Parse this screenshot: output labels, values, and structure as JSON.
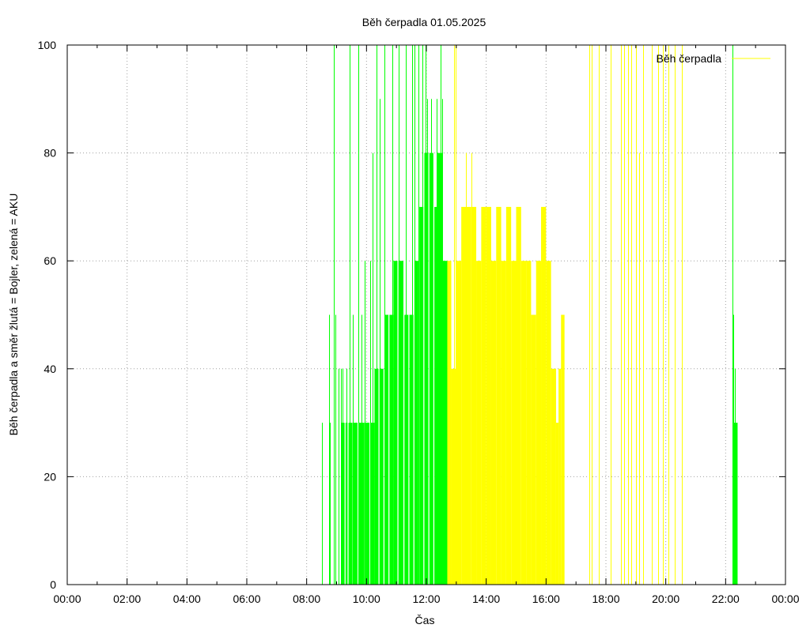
{
  "chart_data": {
    "type": "bar",
    "title": "Běh čerpadla 01.05.2025",
    "xlabel": "Čas",
    "ylabel": "Běh čerpadla a směr žlutá = Bojler, zelená = AKU",
    "xlim": [
      0,
      1440
    ],
    "ylim": [
      0,
      100
    ],
    "x_ticks": [
      "00:00",
      "02:00",
      "04:00",
      "06:00",
      "08:00",
      "10:00",
      "12:00",
      "14:00",
      "16:00",
      "18:00",
      "20:00",
      "22:00",
      "00:00"
    ],
    "y_ticks": [
      "0",
      "20",
      "40",
      "60",
      "80",
      "100"
    ],
    "grid": true,
    "legend_position": "top-right",
    "colors": {
      "green": "#00ff00",
      "yellow": "#ffff00",
      "legend_line": "#ffff00"
    },
    "legend": [
      {
        "label": "Běh čerpadla",
        "color": "#ffff00"
      }
    ],
    "x_unit": "minutes of day",
    "series": [
      {
        "name": "Běh čerpadla",
        "spikes": [
          {
            "x": 510,
            "y": 30,
            "c": "green"
          },
          {
            "x": 525,
            "y": 50,
            "c": "green"
          },
          {
            "x": 527,
            "y": 30,
            "c": "green"
          },
          {
            "x": 535,
            "y": 100,
            "c": "green"
          },
          {
            "x": 538,
            "y": 50,
            "c": "green"
          },
          {
            "x": 544,
            "y": 40,
            "c": "green"
          },
          {
            "x": 548,
            "y": 40,
            "c": "green"
          },
          {
            "x": 552,
            "y": 40,
            "c": "green"
          },
          {
            "x": 560,
            "y": 40,
            "c": "green"
          },
          {
            "x": 566,
            "y": 100,
            "c": "green"
          },
          {
            "x": 572,
            "y": 50,
            "c": "green"
          },
          {
            "x": 583,
            "y": 100,
            "c": "green"
          },
          {
            "x": 590,
            "y": 50,
            "c": "green"
          },
          {
            "x": 597,
            "y": 60,
            "c": "green"
          },
          {
            "x": 608,
            "y": 60,
            "c": "green"
          },
          {
            "x": 612,
            "y": 80,
            "c": "green"
          },
          {
            "x": 620,
            "y": 100,
            "c": "green"
          },
          {
            "x": 626,
            "y": 90,
            "c": "green"
          },
          {
            "x": 636,
            "y": 100,
            "c": "green"
          },
          {
            "x": 652,
            "y": 100,
            "c": "green"
          },
          {
            "x": 665,
            "y": 100,
            "c": "green"
          },
          {
            "x": 678,
            "y": 100,
            "c": "green"
          },
          {
            "x": 691,
            "y": 100,
            "c": "green"
          },
          {
            "x": 697,
            "y": 100,
            "c": "green"
          },
          {
            "x": 704,
            "y": 100,
            "c": "green"
          },
          {
            "x": 712,
            "y": 100,
            "c": "green"
          },
          {
            "x": 719,
            "y": 100,
            "c": "green"
          },
          {
            "x": 721,
            "y": 90,
            "c": "green"
          },
          {
            "x": 730,
            "y": 90,
            "c": "green"
          },
          {
            "x": 741,
            "y": 90,
            "c": "green"
          },
          {
            "x": 748,
            "y": 100,
            "c": "green"
          },
          {
            "x": 752,
            "y": 90,
            "c": "green"
          },
          {
            "x": 1334,
            "y": 100,
            "c": "green"
          },
          {
            "x": 1336,
            "y": 50,
            "c": "green"
          },
          {
            "x": 1338,
            "y": 40,
            "c": "green"
          },
          {
            "x": 775,
            "y": 100,
            "c": "yellow"
          },
          {
            "x": 779,
            "y": 100,
            "c": "yellow"
          },
          {
            "x": 800,
            "y": 80,
            "c": "yellow"
          },
          {
            "x": 810,
            "y": 80,
            "c": "yellow"
          },
          {
            "x": 1047,
            "y": 100,
            "c": "yellow"
          },
          {
            "x": 1052,
            "y": 100,
            "c": "yellow"
          },
          {
            "x": 1066,
            "y": 100,
            "c": "yellow"
          },
          {
            "x": 1090,
            "y": 100,
            "c": "yellow"
          },
          {
            "x": 1110,
            "y": 100,
            "c": "yellow"
          },
          {
            "x": 1116,
            "y": 100,
            "c": "yellow"
          },
          {
            "x": 1125,
            "y": 100,
            "c": "yellow"
          },
          {
            "x": 1130,
            "y": 100,
            "c": "yellow"
          },
          {
            "x": 1140,
            "y": 100,
            "c": "yellow"
          },
          {
            "x": 1147,
            "y": 80,
            "c": "yellow"
          },
          {
            "x": 1155,
            "y": 100,
            "c": "yellow"
          },
          {
            "x": 1172,
            "y": 100,
            "c": "yellow"
          },
          {
            "x": 1184,
            "y": 100,
            "c": "yellow"
          },
          {
            "x": 1194,
            "y": 100,
            "c": "yellow"
          },
          {
            "x": 1206,
            "y": 100,
            "c": "yellow"
          },
          {
            "x": 1218,
            "y": 100,
            "c": "yellow"
          },
          {
            "x": 1232,
            "y": 100,
            "c": "yellow"
          }
        ],
        "blocks": [
          {
            "x0": 550,
            "x1": 556,
            "y": 30,
            "c": "green"
          },
          {
            "x0": 558,
            "x1": 562,
            "y": 30,
            "c": "green"
          },
          {
            "x0": 564,
            "x1": 572,
            "y": 30,
            "c": "green"
          },
          {
            "x0": 574,
            "x1": 582,
            "y": 30,
            "c": "green"
          },
          {
            "x0": 584,
            "x1": 590,
            "y": 30,
            "c": "green"
          },
          {
            "x0": 590,
            "x1": 596,
            "y": 30,
            "c": "green"
          },
          {
            "x0": 598,
            "x1": 606,
            "y": 30,
            "c": "green"
          },
          {
            "x0": 608,
            "x1": 616,
            "y": 30,
            "c": "green"
          },
          {
            "x0": 616,
            "x1": 624,
            "y": 40,
            "c": "green"
          },
          {
            "x0": 626,
            "x1": 634,
            "y": 40,
            "c": "green"
          },
          {
            "x0": 636,
            "x1": 644,
            "y": 50,
            "c": "green"
          },
          {
            "x0": 646,
            "x1": 654,
            "y": 50,
            "c": "green"
          },
          {
            "x0": 654,
            "x1": 662,
            "y": 60,
            "c": "green"
          },
          {
            "x0": 664,
            "x1": 674,
            "y": 60,
            "c": "green"
          },
          {
            "x0": 676,
            "x1": 684,
            "y": 50,
            "c": "green"
          },
          {
            "x0": 686,
            "x1": 694,
            "y": 50,
            "c": "green"
          },
          {
            "x0": 696,
            "x1": 704,
            "y": 60,
            "c": "green"
          },
          {
            "x0": 706,
            "x1": 714,
            "y": 70,
            "c": "green"
          },
          {
            "x0": 716,
            "x1": 724,
            "y": 80,
            "c": "green"
          },
          {
            "x0": 726,
            "x1": 734,
            "y": 80,
            "c": "green"
          },
          {
            "x0": 736,
            "x1": 742,
            "y": 70,
            "c": "green"
          },
          {
            "x0": 742,
            "x1": 752,
            "y": 80,
            "c": "green"
          },
          {
            "x0": 752,
            "x1": 762,
            "y": 60,
            "c": "green"
          },
          {
            "x0": 762,
            "x1": 770,
            "y": 60,
            "c": "yellow"
          },
          {
            "x0": 770,
            "x1": 780,
            "y": 40,
            "c": "yellow"
          },
          {
            "x0": 780,
            "x1": 790,
            "y": 60,
            "c": "yellow"
          },
          {
            "x0": 790,
            "x1": 800,
            "y": 70,
            "c": "yellow"
          },
          {
            "x0": 800,
            "x1": 810,
            "y": 70,
            "c": "yellow"
          },
          {
            "x0": 810,
            "x1": 820,
            "y": 70,
            "c": "yellow"
          },
          {
            "x0": 820,
            "x1": 830,
            "y": 60,
            "c": "yellow"
          },
          {
            "x0": 830,
            "x1": 840,
            "y": 70,
            "c": "yellow"
          },
          {
            "x0": 840,
            "x1": 850,
            "y": 70,
            "c": "yellow"
          },
          {
            "x0": 850,
            "x1": 860,
            "y": 60,
            "c": "yellow"
          },
          {
            "x0": 860,
            "x1": 870,
            "y": 70,
            "c": "yellow"
          },
          {
            "x0": 870,
            "x1": 880,
            "y": 60,
            "c": "yellow"
          },
          {
            "x0": 880,
            "x1": 890,
            "y": 70,
            "c": "yellow"
          },
          {
            "x0": 890,
            "x1": 900,
            "y": 60,
            "c": "yellow"
          },
          {
            "x0": 900,
            "x1": 910,
            "y": 70,
            "c": "yellow"
          },
          {
            "x0": 910,
            "x1": 920,
            "y": 60,
            "c": "yellow"
          },
          {
            "x0": 920,
            "x1": 930,
            "y": 60,
            "c": "yellow"
          },
          {
            "x0": 930,
            "x1": 940,
            "y": 50,
            "c": "yellow"
          },
          {
            "x0": 940,
            "x1": 950,
            "y": 60,
            "c": "yellow"
          },
          {
            "x0": 950,
            "x1": 960,
            "y": 70,
            "c": "yellow"
          },
          {
            "x0": 960,
            "x1": 970,
            "y": 60,
            "c": "yellow"
          },
          {
            "x0": 970,
            "x1": 980,
            "y": 40,
            "c": "yellow"
          },
          {
            "x0": 980,
            "x1": 985,
            "y": 30,
            "c": "yellow"
          },
          {
            "x0": 985,
            "x1": 990,
            "y": 40,
            "c": "yellow"
          },
          {
            "x0": 990,
            "x1": 997,
            "y": 50,
            "c": "yellow"
          },
          {
            "x0": 1335,
            "x1": 1344,
            "y": 30,
            "c": "green"
          }
        ]
      }
    ]
  }
}
